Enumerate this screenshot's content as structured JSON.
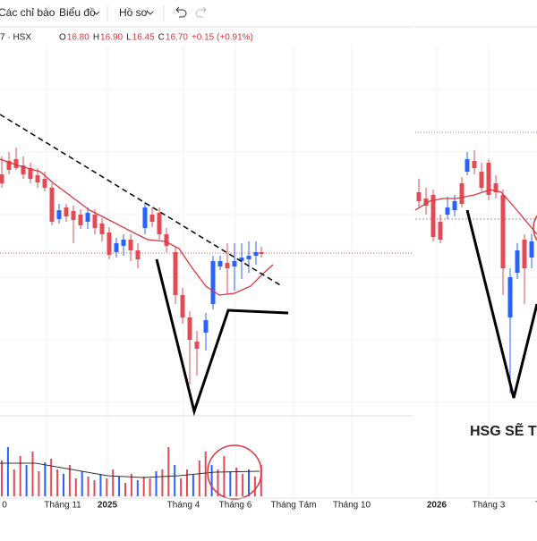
{
  "toolbar": {
    "items": [
      "Các chỉ báo",
      "Biểu đồ",
      "Hồ sơ"
    ]
  },
  "legend": {
    "symbol": "7 · HSX",
    "ohlc": [
      {
        "key": "O",
        "value": "16.80"
      },
      {
        "key": "H",
        "value": "16.90"
      },
      {
        "key": "L",
        "value": "16.45"
      },
      {
        "key": "C",
        "value": "16.70"
      }
    ],
    "change": "+0.15 (+0.91%)"
  },
  "axis_left": [
    "0",
    "Tháng 11",
    "2025",
    "Tháng 4",
    "Tháng 6",
    "Tháng Tám",
    "Tháng 10"
  ],
  "axis_right": [
    "2026",
    "Tháng 3",
    "Tháng"
  ],
  "annotation": "HSG SẼ TĂ"
}
